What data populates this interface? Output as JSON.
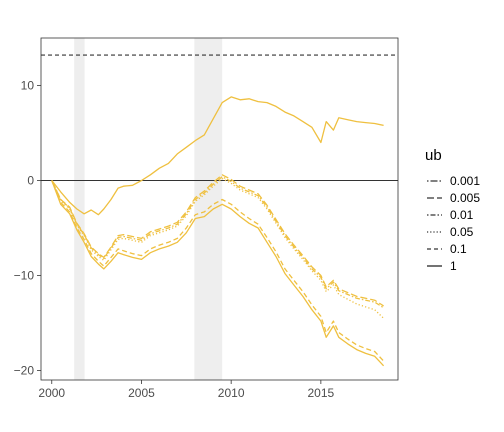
{
  "chart_data": {
    "type": "line",
    "title": "",
    "xlabel": "",
    "ylabel": "",
    "xlim": [
      1999.4,
      2019.3
    ],
    "ylim": [
      -21,
      15
    ],
    "grid": false,
    "legend_position": "right",
    "x_ticks": [
      2000,
      2005,
      2010,
      2015
    ],
    "x_tick_labels": [
      "2000",
      "2005",
      "2010",
      "2015"
    ],
    "y_ticks": [
      -20,
      -10,
      0,
      10
    ],
    "y_tick_labels": [
      "−20",
      "−10",
      "0",
      "10"
    ],
    "shaded_periods": [
      [
        2001.25,
        2001.83
      ],
      [
        2007.95,
        2009.5
      ]
    ],
    "reference_lines": {
      "zero": 0,
      "upper": 13.2
    },
    "line_color": "#efc040",
    "legend": {
      "title": "ub",
      "entries": [
        "0.001",
        "0.005",
        "0.01",
        "0.05",
        "0.1",
        "1"
      ]
    },
    "series": [
      {
        "name": "1",
        "x": [
          2000,
          2000.5,
          2001,
          2001.4,
          2001.8,
          2002.2,
          2002.6,
          2002.9,
          2003.3,
          2003.7,
          2004.0,
          2004.5,
          2005.0,
          2005.5,
          2006.0,
          2006.5,
          2007.0,
          2007.5,
          2008.0,
          2008.5,
          2009.0,
          2009.5,
          2010.0,
          2010.5,
          2011.0,
          2011.5,
          2012.0,
          2012.5,
          2013.0,
          2013.5,
          2014.0,
          2014.5,
          2015.0,
          2015.3,
          2015.7,
          2016.0,
          2016.5,
          2017.0,
          2017.5,
          2018.0,
          2018.5
        ],
        "y": [
          0,
          -2.5,
          -3.5,
          -5.2,
          -6.5,
          -8.0,
          -8.8,
          -9.3,
          -8.5,
          -7.6,
          -7.8,
          -8.1,
          -8.3,
          -7.6,
          -7.2,
          -6.9,
          -6.5,
          -5.5,
          -4.0,
          -3.8,
          -3.0,
          -2.5,
          -3.0,
          -3.8,
          -4.5,
          -5.0,
          -6.5,
          -8.0,
          -9.8,
          -11.0,
          -12.2,
          -13.6,
          -14.8,
          -16.5,
          -15.3,
          -16.5,
          -17.2,
          -17.8,
          -18.2,
          -18.5,
          -19.5
        ]
      },
      {
        "name": "0.1",
        "x": [
          2000,
          2000.5,
          2001,
          2001.4,
          2001.8,
          2002.2,
          2002.6,
          2002.9,
          2003.3,
          2003.7,
          2004.0,
          2004.5,
          2005.0,
          2005.5,
          2006.0,
          2006.5,
          2007.0,
          2007.5,
          2008.0,
          2008.5,
          2009.0,
          2009.5,
          2010.0,
          2010.5,
          2011.0,
          2011.5,
          2012.0,
          2012.5,
          2013.0,
          2013.5,
          2014.0,
          2014.5,
          2015.0,
          2015.3,
          2015.7,
          2016.0,
          2016.5,
          2017.0,
          2017.5,
          2018.0,
          2018.5
        ],
        "y": [
          0,
          -2.3,
          -3.3,
          -5.0,
          -6.2,
          -7.7,
          -8.5,
          -9.0,
          -8.1,
          -7.2,
          -7.4,
          -7.7,
          -7.9,
          -7.2,
          -6.8,
          -6.5,
          -6.1,
          -5.0,
          -3.6,
          -3.3,
          -2.5,
          -2.0,
          -2.5,
          -3.3,
          -4.0,
          -4.6,
          -6.0,
          -7.5,
          -9.3,
          -10.5,
          -11.7,
          -13.1,
          -14.3,
          -16.0,
          -14.8,
          -16.0,
          -16.7,
          -17.3,
          -17.7,
          -18.0,
          -19.0
        ]
      },
      {
        "name": "0.05",
        "x": [
          2000,
          2000.5,
          2001,
          2001.4,
          2001.8,
          2002.2,
          2002.6,
          2002.9,
          2003.3,
          2003.7,
          2004.0,
          2004.5,
          2005.0,
          2005.5,
          2006.0,
          2006.5,
          2007.0,
          2007.5,
          2008.0,
          2008.5,
          2009.0,
          2009.5,
          2010.0,
          2010.5,
          2011.0,
          2011.5,
          2012.0,
          2012.5,
          2013.0,
          2013.5,
          2014.0,
          2014.5,
          2015.0,
          2015.3,
          2015.7,
          2016.0,
          2016.5,
          2017.0,
          2017.5,
          2018.0,
          2018.5
        ],
        "y": [
          0,
          -2.1,
          -3.0,
          -4.7,
          -5.8,
          -7.3,
          -8.0,
          -8.4,
          -7.3,
          -6.2,
          -6.1,
          -6.3,
          -6.5,
          -5.8,
          -5.5,
          -5.2,
          -4.8,
          -3.7,
          -2.2,
          -1.5,
          -0.6,
          0.2,
          -0.3,
          -1.0,
          -1.4,
          -1.8,
          -3.0,
          -4.5,
          -6.0,
          -7.2,
          -8.3,
          -9.5,
          -10.5,
          -11.7,
          -11.0,
          -12.0,
          -12.5,
          -13.0,
          -13.3,
          -13.6,
          -14.5
        ]
      },
      {
        "name": "0.01",
        "x": [
          2000,
          2000.5,
          2001,
          2001.4,
          2001.8,
          2002.2,
          2002.6,
          2002.9,
          2003.3,
          2003.7,
          2004.0,
          2004.5,
          2005.0,
          2005.5,
          2006.0,
          2006.5,
          2007.0,
          2007.5,
          2008.0,
          2008.5,
          2009.0,
          2009.5,
          2010.0,
          2010.5,
          2011.0,
          2011.5,
          2012.0,
          2012.5,
          2013.0,
          2013.5,
          2014.0,
          2014.5,
          2015.0,
          2015.3,
          2015.7,
          2016.0,
          2016.5,
          2017.0,
          2017.5,
          2018.0,
          2018.5
        ],
        "y": [
          0,
          -2.0,
          -2.9,
          -4.6,
          -5.7,
          -7.1,
          -7.8,
          -8.2,
          -7.1,
          -6.0,
          -5.9,
          -6.1,
          -6.3,
          -5.6,
          -5.3,
          -5.0,
          -4.6,
          -3.5,
          -2.0,
          -1.3,
          -0.4,
          0.4,
          -0.1,
          -0.8,
          -1.2,
          -1.6,
          -2.8,
          -4.3,
          -5.8,
          -7.0,
          -8.1,
          -9.3,
          -10.2,
          -11.4,
          -10.7,
          -11.6,
          -12.0,
          -12.4,
          -12.6,
          -12.8,
          -13.4
        ]
      },
      {
        "name": "0.005",
        "x": [
          2000,
          2000.5,
          2001,
          2001.4,
          2001.8,
          2002.2,
          2002.6,
          2002.9,
          2003.3,
          2003.7,
          2004.0,
          2004.5,
          2005.0,
          2005.5,
          2006.0,
          2006.5,
          2007.0,
          2007.5,
          2008.0,
          2008.5,
          2009.0,
          2009.5,
          2010.0,
          2010.5,
          2011.0,
          2011.5,
          2012.0,
          2012.5,
          2013.0,
          2013.5,
          2014.0,
          2014.5,
          2015.0,
          2015.3,
          2015.7,
          2016.0,
          2016.5,
          2017.0,
          2017.5,
          2018.0,
          2018.5
        ],
        "y": [
          0,
          -2.0,
          -2.8,
          -4.5,
          -5.6,
          -7.0,
          -7.7,
          -8.1,
          -7.0,
          -5.8,
          -5.7,
          -5.9,
          -6.1,
          -5.4,
          -5.1,
          -4.8,
          -4.4,
          -3.3,
          -1.8,
          -1.1,
          -0.2,
          0.6,
          0.1,
          -0.6,
          -1.0,
          -1.4,
          -2.6,
          -4.1,
          -5.6,
          -6.8,
          -7.9,
          -9.1,
          -10.0,
          -11.2,
          -10.5,
          -11.4,
          -11.8,
          -12.2,
          -12.4,
          -12.6,
          -13.2
        ]
      },
      {
        "name": "0.001",
        "x": [
          2000,
          2000.5,
          2001,
          2001.4,
          2001.8,
          2002.2,
          2002.6,
          2002.9,
          2003.3,
          2003.7,
          2004.0,
          2004.5,
          2005.0,
          2005.5,
          2006.0,
          2006.5,
          2007.0,
          2007.5,
          2008.0,
          2008.5,
          2009.0,
          2009.5,
          2010.0,
          2010.5,
          2011.0,
          2011.5,
          2012.0,
          2012.5,
          2013.0,
          2013.5,
          2014.0,
          2014.5,
          2015.0,
          2015.3,
          2015.7,
          2016.0,
          2016.5,
          2017.0,
          2017.5,
          2018.0,
          2018.5
        ],
        "y": [
          0,
          -1.2,
          -2.3,
          -3.0,
          -3.5,
          -3.1,
          -3.6,
          -3.0,
          -2.0,
          -0.8,
          -0.6,
          -0.5,
          0.0,
          0.6,
          1.3,
          1.8,
          2.8,
          3.5,
          4.2,
          4.8,
          6.5,
          8.2,
          8.8,
          8.5,
          8.6,
          8.3,
          8.2,
          7.8,
          7.2,
          6.8,
          6.2,
          5.6,
          4.0,
          6.2,
          5.3,
          6.6,
          6.4,
          6.2,
          6.1,
          6.0,
          5.8
        ]
      }
    ]
  }
}
